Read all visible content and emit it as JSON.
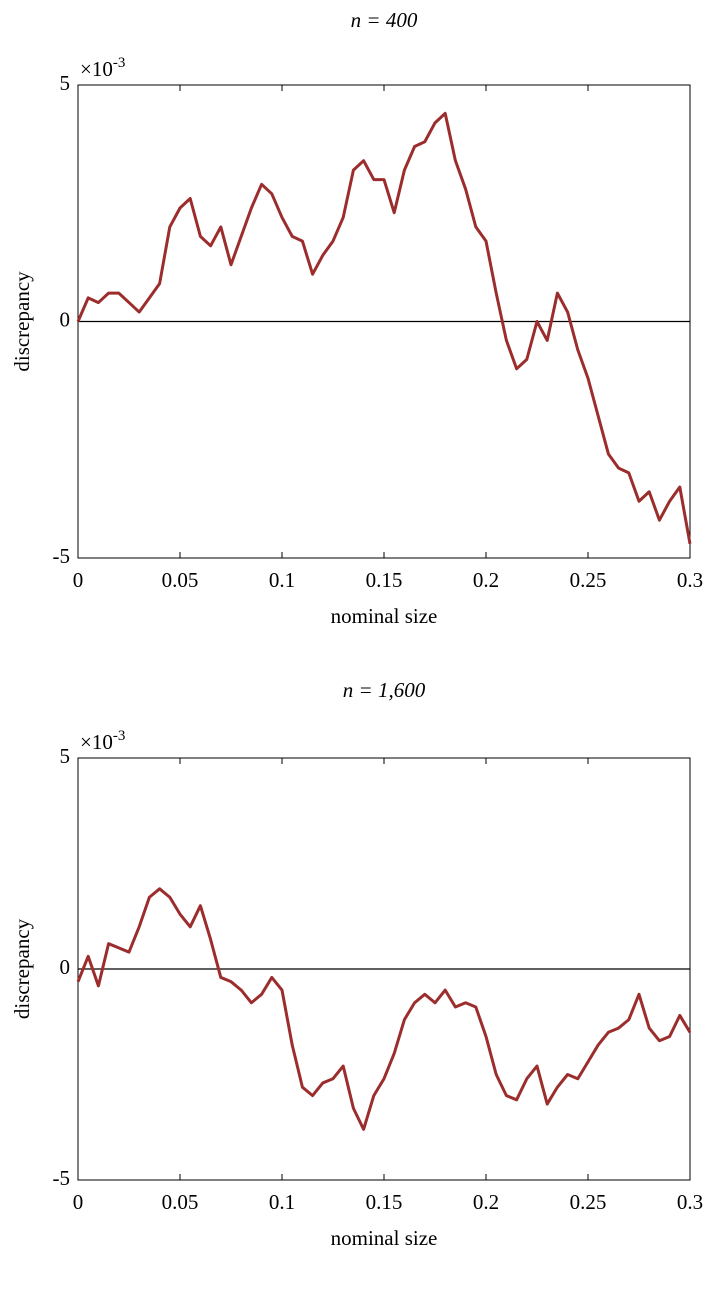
{
  "chart_data": [
    {
      "type": "line",
      "title": "n = 400",
      "xlabel": "nominal size",
      "ylabel": "discrepancy",
      "y_multiplier": {
        "base": "×10",
        "exponent": "-3"
      },
      "x": [
        0,
        0.005,
        0.01,
        0.015,
        0.02,
        0.025,
        0.03,
        0.035,
        0.04,
        0.045,
        0.05,
        0.055,
        0.06,
        0.065,
        0.07,
        0.075,
        0.08,
        0.085,
        0.09,
        0.095,
        0.1,
        0.105,
        0.11,
        0.115,
        0.12,
        0.125,
        0.13,
        0.135,
        0.14,
        0.145,
        0.15,
        0.155,
        0.16,
        0.165,
        0.17,
        0.175,
        0.18,
        0.185,
        0.19,
        0.195,
        0.2,
        0.205,
        0.21,
        0.215,
        0.22,
        0.225,
        0.23,
        0.235,
        0.24,
        0.245,
        0.25,
        0.255,
        0.26,
        0.265,
        0.27,
        0.275,
        0.28,
        0.285,
        0.29,
        0.295,
        0.3
      ],
      "series": [
        {
          "color": "#9b2d2d",
          "values": [
            0,
            0.5,
            0.4,
            0.6,
            0.6,
            0.4,
            0.2,
            0.5,
            0.8,
            2.0,
            2.4,
            2.6,
            1.8,
            1.6,
            2.0,
            1.2,
            1.8,
            2.4,
            2.9,
            2.7,
            2.2,
            1.8,
            1.7,
            1.0,
            1.4,
            1.7,
            2.2,
            3.2,
            3.4,
            3.0,
            3.0,
            2.3,
            3.2,
            3.7,
            3.8,
            4.2,
            4.4,
            3.4,
            2.8,
            2.0,
            1.7,
            0.6,
            -0.4,
            -1.0,
            -0.8,
            0.0,
            -0.4,
            0.6,
            0.2,
            -0.6,
            -1.2,
            -2.0,
            -2.8,
            -3.1,
            -3.2,
            -3.8,
            -3.6,
            -4.2,
            -3.8,
            -3.5,
            -4.7
          ]
        }
      ],
      "hline": 0,
      "xlim": [
        0,
        0.3
      ],
      "xticks": [
        0,
        0.05,
        0.1,
        0.15,
        0.2,
        0.25,
        0.3
      ],
      "ylim": [
        -5,
        5
      ],
      "yticks": [
        -5,
        0,
        5
      ]
    },
    {
      "type": "line",
      "title": "n = 1,600",
      "xlabel": "nominal size",
      "ylabel": "discrepancy",
      "y_multiplier": {
        "base": "×10",
        "exponent": "-3"
      },
      "x": [
        0,
        0.005,
        0.01,
        0.015,
        0.02,
        0.025,
        0.03,
        0.035,
        0.04,
        0.045,
        0.05,
        0.055,
        0.06,
        0.065,
        0.07,
        0.075,
        0.08,
        0.085,
        0.09,
        0.095,
        0.1,
        0.105,
        0.11,
        0.115,
        0.12,
        0.125,
        0.13,
        0.135,
        0.14,
        0.145,
        0.15,
        0.155,
        0.16,
        0.165,
        0.17,
        0.175,
        0.18,
        0.185,
        0.19,
        0.195,
        0.2,
        0.205,
        0.21,
        0.215,
        0.22,
        0.225,
        0.23,
        0.235,
        0.24,
        0.245,
        0.25,
        0.255,
        0.26,
        0.265,
        0.27,
        0.275,
        0.28,
        0.285,
        0.29,
        0.295,
        0.3
      ],
      "series": [
        {
          "color": "#9b2d2d",
          "values": [
            -0.3,
            0.3,
            -0.4,
            0.6,
            0.5,
            0.4,
            1.0,
            1.7,
            1.9,
            1.7,
            1.3,
            1.0,
            1.5,
            0.7,
            -0.2,
            -0.3,
            -0.5,
            -0.8,
            -0.6,
            -0.2,
            -0.5,
            -1.8,
            -2.8,
            -3.0,
            -2.7,
            -2.6,
            -2.3,
            -3.3,
            -3.8,
            -3.0,
            -2.6,
            -2.0,
            -1.2,
            -0.8,
            -0.6,
            -0.8,
            -0.5,
            -0.9,
            -0.8,
            -0.9,
            -1.6,
            -2.5,
            -3.0,
            -3.1,
            -2.6,
            -2.3,
            -3.2,
            -2.8,
            -2.5,
            -2.6,
            -2.2,
            -1.8,
            -1.5,
            -1.4,
            -1.2,
            -0.6,
            -1.4,
            -1.7,
            -1.6,
            -1.1,
            -1.5
          ]
        }
      ],
      "hline": 0,
      "xlim": [
        0,
        0.3
      ],
      "xticks": [
        0,
        0.05,
        0.1,
        0.15,
        0.2,
        0.25,
        0.3
      ],
      "ylim": [
        -5,
        5
      ],
      "yticks": [
        -5,
        0,
        5
      ]
    }
  ]
}
